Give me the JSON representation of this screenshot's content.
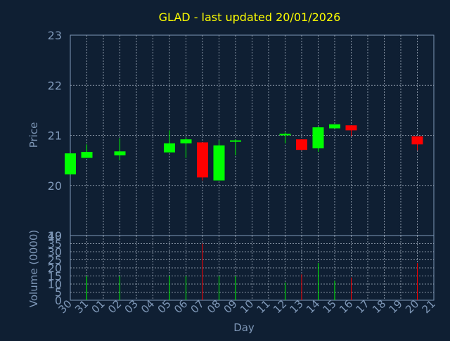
{
  "chart_data": {
    "type": "candlestick",
    "title": "GLAD - last updated 20/01/2026",
    "xlabel": "Day",
    "price_ylabel": "Price",
    "volume_ylabel": "Volume (0000)",
    "price_ylim": [
      19,
      23
    ],
    "price_ticks": [
      "23",
      "22",
      "21",
      "20",
      "19"
    ],
    "volume_ylim": [
      0,
      40
    ],
    "volume_ticks": [
      "40",
      "35",
      "30",
      "25",
      "20",
      "15",
      "10",
      "5",
      "0"
    ],
    "grid": true,
    "day_labels": [
      "30",
      "31",
      "01",
      "02",
      "03",
      "04",
      "05",
      "06",
      "07",
      "08",
      "09",
      "10",
      "11",
      "12",
      "13",
      "14",
      "15",
      "16",
      "17",
      "18",
      "19",
      "20",
      "21"
    ],
    "candles": [
      {
        "day": "30",
        "open": 20.22,
        "high": 20.64,
        "low": 20.22,
        "close": 20.64,
        "volume": 0
      },
      {
        "day": "31",
        "open": 20.55,
        "high": 20.82,
        "low": 20.55,
        "close": 20.67,
        "volume": 15
      },
      {
        "day": "02",
        "open": 20.6,
        "high": 20.94,
        "low": 20.5,
        "close": 20.68,
        "volume": 15
      },
      {
        "day": "05",
        "open": 20.66,
        "high": 21.1,
        "low": 20.66,
        "close": 20.84,
        "volume": 15
      },
      {
        "day": "06",
        "open": 20.84,
        "high": 20.96,
        "low": 20.55,
        "close": 20.92,
        "volume": 15
      },
      {
        "day": "07",
        "open": 20.86,
        "high": 20.86,
        "low": 20.1,
        "close": 20.16,
        "volume": 35
      },
      {
        "day": "08",
        "open": 20.1,
        "high": 20.9,
        "low": 20.1,
        "close": 20.8,
        "volume": 15
      },
      {
        "day": "09",
        "open": 20.88,
        "high": 20.92,
        "low": 20.6,
        "close": 20.9,
        "volume": 15
      },
      {
        "day": "12",
        "open": 21.0,
        "high": 21.06,
        "low": 20.84,
        "close": 21.03,
        "volume": 11
      },
      {
        "day": "13",
        "open": 20.92,
        "high": 20.92,
        "low": 20.7,
        "close": 20.71,
        "volume": 16
      },
      {
        "day": "14",
        "open": 20.74,
        "high": 21.18,
        "low": 20.67,
        "close": 21.16,
        "volume": 23
      },
      {
        "day": "15",
        "open": 21.14,
        "high": 21.22,
        "low": 21.14,
        "close": 21.22,
        "volume": 12
      },
      {
        "day": "16",
        "open": 21.2,
        "high": 21.2,
        "low": 20.98,
        "close": 21.1,
        "volume": 14
      },
      {
        "day": "20",
        "open": 20.98,
        "high": 20.98,
        "low": 20.7,
        "close": 20.82,
        "volume": 23
      }
    ]
  },
  "colors": {
    "background": "#0f1f33",
    "title": "#ffff00",
    "axis_text": "#7f98b8",
    "axis_line": "#7f98b8",
    "grid": "#a9b5c4",
    "up": "#00ff00",
    "down": "#ff0000"
  }
}
